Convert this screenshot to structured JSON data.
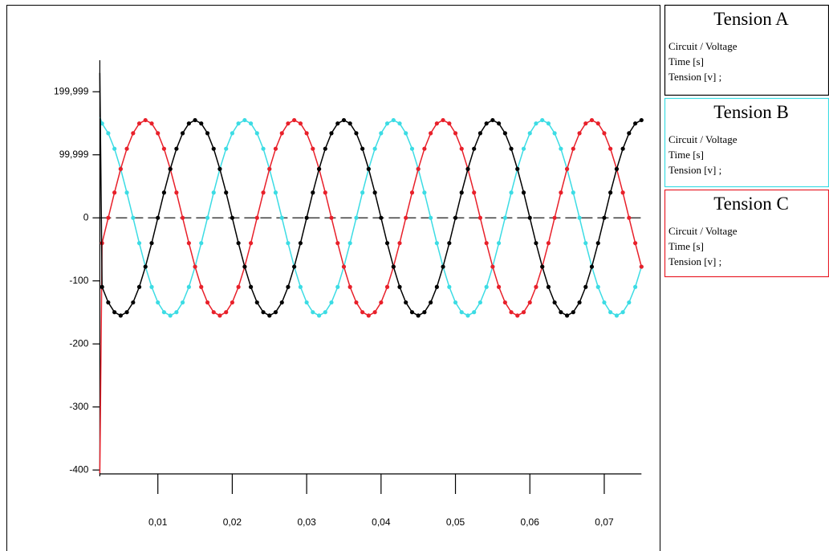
{
  "chart_data": {
    "type": "line",
    "legend_lines": [
      "Circuit / Voltage",
      "Time [s]",
      "Tension [v] ;"
    ],
    "x": [
      0.0022,
      0.0025,
      0.00333,
      0.00417,
      0.005,
      0.00583,
      0.00667,
      0.0075,
      0.00833,
      0.00917,
      0.01,
      0.01083,
      0.01167,
      0.0125,
      0.01333,
      0.01417,
      0.015,
      0.01583,
      0.01667,
      0.0175,
      0.01833,
      0.01917,
      0.02,
      0.02083,
      0.02167,
      0.0225,
      0.02333,
      0.02417,
      0.025,
      0.02583,
      0.02667,
      0.0275,
      0.02833,
      0.02917,
      0.03,
      0.03083,
      0.03167,
      0.0325,
      0.03333,
      0.03417,
      0.035,
      0.03583,
      0.03667,
      0.0375,
      0.03833,
      0.03917,
      0.04,
      0.04083,
      0.04167,
      0.0425,
      0.04333,
      0.04417,
      0.045,
      0.04583,
      0.04667,
      0.0475,
      0.04833,
      0.04917,
      0.05,
      0.05083,
      0.05167,
      0.0525,
      0.05333,
      0.05417,
      0.055,
      0.05583,
      0.05667,
      0.0575,
      0.05833,
      0.05917,
      0.06,
      0.06083,
      0.06167,
      0.0625,
      0.06333,
      0.06417,
      0.065,
      0.06583,
      0.06667,
      0.0675,
      0.06833,
      0.06917,
      0.07,
      0.07083,
      0.07167,
      0.0725,
      0.07333,
      0.07417,
      0.075
    ],
    "series": [
      {
        "name": "Tension A",
        "color": "#000000",
        "values": [
          230,
          -109.6,
          -134.2,
          -149.7,
          -155,
          -149.7,
          -134.2,
          -109.6,
          -77.5,
          -40.1,
          0,
          40.1,
          77.5,
          109.6,
          134.2,
          149.7,
          155,
          149.7,
          134.2,
          109.6,
          77.5,
          40.1,
          0,
          -40.1,
          -77.5,
          -109.6,
          -134.2,
          -149.7,
          -155,
          -149.7,
          -134.2,
          -109.6,
          -77.5,
          -40.1,
          0,
          40.1,
          77.5,
          109.6,
          134.2,
          149.7,
          155,
          149.7,
          134.2,
          109.6,
          77.5,
          40.1,
          0,
          -40.1,
          -77.5,
          -109.6,
          -134.2,
          -149.7,
          -155,
          -149.7,
          -134.2,
          -109.6,
          -77.5,
          -40.1,
          0,
          40.1,
          77.5,
          109.6,
          134.2,
          149.7,
          155,
          149.7,
          134.2,
          109.6,
          77.5,
          40.1,
          0,
          -40.1,
          -77.5,
          -109.6,
          -134.2,
          -149.7,
          -155,
          -149.7,
          -134.2,
          -109.6,
          -77.5,
          -40.1,
          0,
          40.1,
          77.5,
          109.6,
          134.2,
          149.7,
          155
        ]
      },
      {
        "name": "Tension B",
        "color": "#3cdce4",
        "values": [
          160,
          149.7,
          134.2,
          109.6,
          77.5,
          40.1,
          0,
          -40.1,
          -77.5,
          -109.6,
          -134.2,
          -149.7,
          -155,
          -149.7,
          -134.2,
          -109.6,
          -77.5,
          -40.1,
          0,
          40.1,
          77.5,
          109.6,
          134.2,
          149.7,
          155,
          149.7,
          134.2,
          109.6,
          77.5,
          40.1,
          0,
          -40.1,
          -77.5,
          -109.6,
          -134.2,
          -149.7,
          -155,
          -149.7,
          -134.2,
          -109.6,
          -77.5,
          -40.1,
          0,
          40.1,
          77.5,
          109.6,
          134.2,
          149.7,
          155,
          149.7,
          134.2,
          109.6,
          77.5,
          40.1,
          0,
          -40.1,
          -77.5,
          -109.6,
          -134.2,
          -149.7,
          -155,
          -149.7,
          -134.2,
          -109.6,
          -77.5,
          -40.1,
          0,
          40.1,
          77.5,
          109.6,
          134.2,
          149.7,
          155,
          149.7,
          134.2,
          109.6,
          77.5,
          40.1,
          0,
          -40.1,
          -77.5,
          -109.6,
          -134.2,
          -149.7,
          -155,
          -149.7,
          -134.2,
          -109.6,
          -77.5
        ]
      },
      {
        "name": "Tension C",
        "color": "#e8202a",
        "values": [
          -405,
          -40.1,
          0,
          40.1,
          77.5,
          109.6,
          134.2,
          149.7,
          155,
          149.7,
          134.2,
          109.6,
          77.5,
          40.1,
          0,
          -40.1,
          -77.5,
          -109.6,
          -134.2,
          -149.7,
          -155,
          -149.7,
          -134.2,
          -109.6,
          -77.5,
          -40.1,
          0,
          40.1,
          77.5,
          109.6,
          134.2,
          149.7,
          155,
          149.7,
          134.2,
          109.6,
          77.5,
          40.1,
          0,
          -40.1,
          -77.5,
          -109.6,
          -134.2,
          -149.7,
          -155,
          -149.7,
          -134.2,
          -109.6,
          -77.5,
          -40.1,
          0,
          40.1,
          77.5,
          109.6,
          134.2,
          149.7,
          155,
          149.7,
          134.2,
          109.6,
          77.5,
          40.1,
          0,
          -40.1,
          -77.5,
          -109.6,
          -134.2,
          -149.7,
          -155,
          -149.7,
          -134.2,
          -109.6,
          -77.5,
          -40.1,
          0,
          40.1,
          77.5,
          109.6,
          134.2,
          149.7,
          155,
          149.7,
          134.2,
          109.6,
          77.5,
          40.1,
          0,
          -40.1,
          -77.5
        ]
      }
    ],
    "xlim": [
      0.0022,
      0.075
    ],
    "xticks": [
      {
        "value": 0.01,
        "label": "0,01"
      },
      {
        "value": 0.02,
        "label": "0,02"
      },
      {
        "value": 0.03,
        "label": "0,03"
      },
      {
        "value": 0.04,
        "label": "0,04"
      },
      {
        "value": 0.05,
        "label": "0,05"
      },
      {
        "value": 0.06,
        "label": "0,06"
      },
      {
        "value": 0.07,
        "label": "0,07"
      }
    ],
    "ylim": [
      -410,
      250
    ],
    "yticks": [
      -400,
      -300,
      -200,
      -100,
      0,
      {
        "value": 99.999,
        "label": "99,999"
      },
      {
        "value": 199.999,
        "label": "199,999"
      }
    ],
    "zero_line": true,
    "markers": true
  }
}
